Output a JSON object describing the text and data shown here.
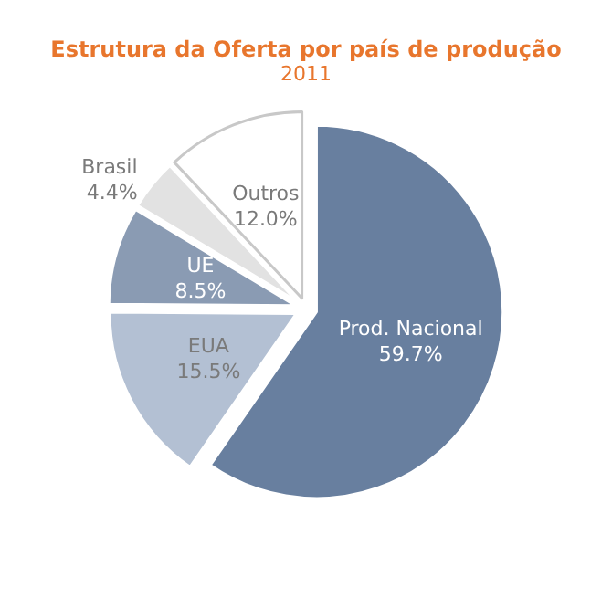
{
  "chart_data": {
    "type": "pie",
    "title": "Estrutura da Oferta por país de produção",
    "subtitle": "2011",
    "categories": [
      "Prod. Nacional",
      "EUA",
      "UE",
      "Brasil",
      "Outros"
    ],
    "values": [
      59.7,
      15.5,
      8.5,
      4.4,
      12.0
    ],
    "value_labels": [
      "59.7%",
      "15.5%",
      "8.5%",
      "4.4%",
      "12.0%"
    ],
    "colors": [
      "#687f9f",
      "#b3c0d3",
      "#8a9bb3",
      "#e2e2e2",
      "#ffffff"
    ],
    "legend": false
  }
}
